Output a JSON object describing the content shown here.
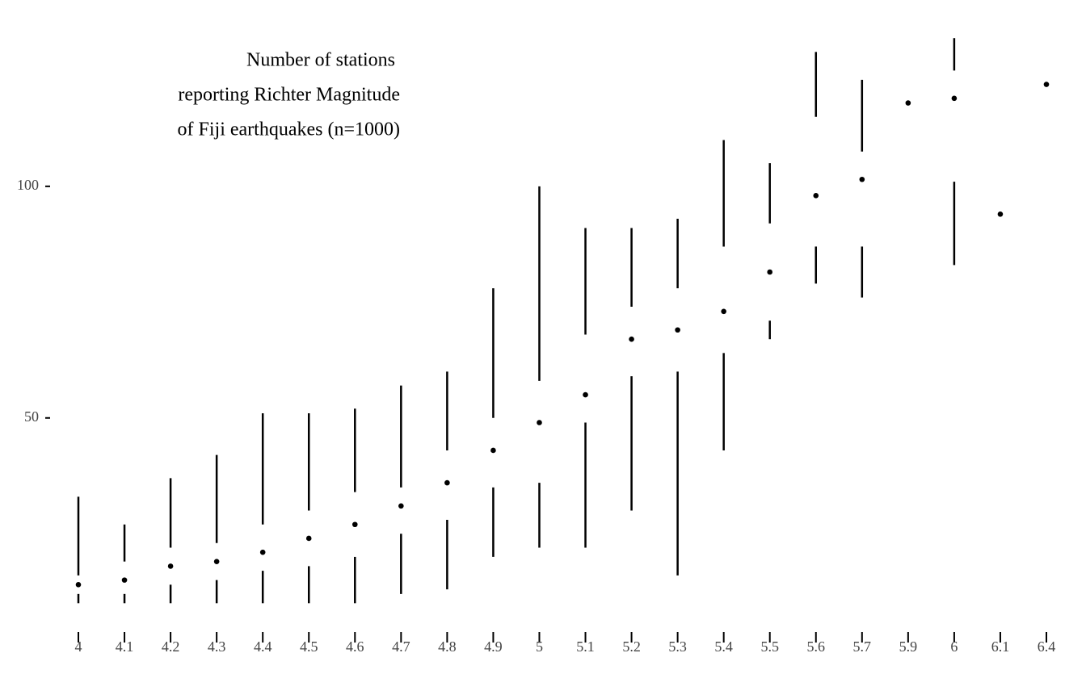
{
  "chart_data": {
    "type": "boxplot",
    "title": [
      "Number of stations",
      "reporting Richter Magnitude",
      "of Fiji earthquakes (n=1000)"
    ],
    "categories": [
      "4",
      "4.1",
      "4.2",
      "4.3",
      "4.4",
      "4.5",
      "4.6",
      "4.7",
      "4.8",
      "4.9",
      "5",
      "5.1",
      "5.2",
      "5.3",
      "5.4",
      "5.5",
      "5.6",
      "5.7",
      "5.9",
      "6",
      "6.1",
      "6.4"
    ],
    "min": [
      10,
      10,
      10,
      10,
      10,
      10,
      10,
      12,
      13,
      20,
      22,
      22,
      30,
      16,
      43,
      67,
      79,
      76,
      118,
      83,
      94,
      122
    ],
    "q1": [
      12,
      12,
      14,
      15,
      17,
      18,
      20,
      25,
      28,
      35,
      36,
      49,
      59,
      60,
      64,
      71,
      87,
      87,
      118,
      101,
      94,
      122
    ],
    "median": [
      14,
      15,
      18,
      19,
      21,
      24,
      27,
      31,
      36,
      43,
      49,
      55,
      67,
      69,
      73,
      81.5,
      98,
      101.5,
      118,
      119,
      94,
      122
    ],
    "q3": [
      16,
      19,
      22,
      23,
      27,
      30,
      34,
      35,
      43,
      50,
      58,
      68,
      74,
      78,
      87,
      92,
      115,
      107.5,
      118,
      125,
      94,
      122
    ],
    "max": [
      33,
      27,
      37,
      42,
      51,
      51,
      52,
      57,
      60,
      78,
      100,
      91,
      91,
      93,
      110,
      105,
      129,
      123,
      118,
      132,
      94,
      122
    ],
    "color": "#000000",
    "ylim": [
      5,
      135
    ],
    "yticks": [
      50,
      100
    ]
  }
}
